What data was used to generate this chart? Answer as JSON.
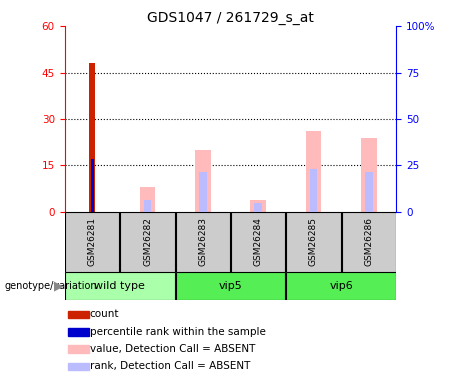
{
  "title": "GDS1047 / 261729_s_at",
  "samples": [
    "GSM26281",
    "GSM26282",
    "GSM26283",
    "GSM26284",
    "GSM26285",
    "GSM26286"
  ],
  "groups": [
    {
      "name": "wild type",
      "indices": [
        0,
        1
      ],
      "color": "#aaffaa"
    },
    {
      "name": "vip5",
      "indices": [
        2,
        3
      ],
      "color": "#55ee55"
    },
    {
      "name": "vip6",
      "indices": [
        4,
        5
      ],
      "color": "#55ee55"
    }
  ],
  "count_bar": [
    48,
    0,
    0,
    0,
    0,
    0
  ],
  "percentile_bar": [
    17,
    0,
    0,
    0,
    0,
    0
  ],
  "value_absent": [
    0,
    8,
    20,
    4,
    26,
    24
  ],
  "rank_absent": [
    0,
    4,
    13,
    3,
    14,
    13
  ],
  "ylim_left": [
    0,
    60
  ],
  "ylim_right": [
    0,
    100
  ],
  "yticks_left": [
    0,
    15,
    30,
    45,
    60
  ],
  "yticks_right": [
    0,
    25,
    50,
    75,
    100
  ],
  "color_count": "#cc2200",
  "color_percentile": "#0000cc",
  "color_value_absent": "#ffbbbb",
  "color_rank_absent": "#bbbbff",
  "legend_items": [
    {
      "label": "count",
      "color": "#cc2200"
    },
    {
      "label": "percentile rank within the sample",
      "color": "#0000cc"
    },
    {
      "label": "value, Detection Call = ABSENT",
      "color": "#ffbbbb"
    },
    {
      "label": "rank, Detection Call = ABSENT",
      "color": "#bbbbff"
    }
  ]
}
